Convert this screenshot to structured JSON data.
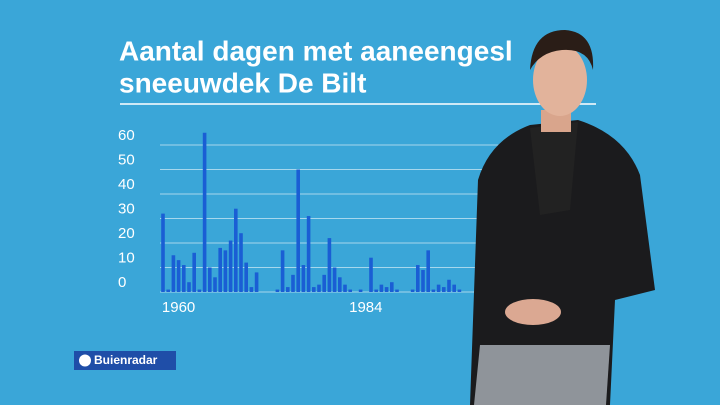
{
  "chart_data": {
    "type": "bar",
    "title": "Aantal dagen met aaneengesl",
    "subtitle": "sneeuwdek De Bilt",
    "categories": [
      null,
      null,
      null,
      "1960",
      null,
      null,
      null,
      null,
      null,
      null,
      null,
      null,
      null,
      null,
      null,
      null,
      null,
      null,
      null,
      null,
      null,
      null,
      null,
      null,
      null,
      null,
      null,
      null,
      null,
      null,
      null,
      null,
      null,
      null,
      null,
      null,
      null,
      null,
      null,
      "1984",
      null,
      null,
      null,
      null,
      null,
      null,
      null,
      null,
      null,
      null,
      null,
      null,
      null,
      null,
      null,
      null,
      null,
      null
    ],
    "values": [
      32,
      1,
      15,
      13,
      11,
      4,
      16,
      1,
      65,
      10,
      6,
      18,
      17,
      21,
      34,
      24,
      12,
      2,
      8,
      0,
      0,
      0,
      1,
      17,
      2,
      7,
      50,
      11,
      31,
      2,
      3,
      7,
      22,
      10,
      6,
      3,
      1,
      0,
      1,
      0,
      14,
      1,
      3,
      2,
      4,
      1,
      0,
      0,
      1,
      11,
      9,
      17,
      1,
      3,
      2,
      5,
      3,
      1
    ],
    "color": "#1a5ed4",
    "ylim": [
      0,
      60
    ],
    "yticks": [
      0,
      10,
      20,
      30,
      40,
      50,
      60
    ],
    "grid": true
  },
  "brand": "Buienradar"
}
